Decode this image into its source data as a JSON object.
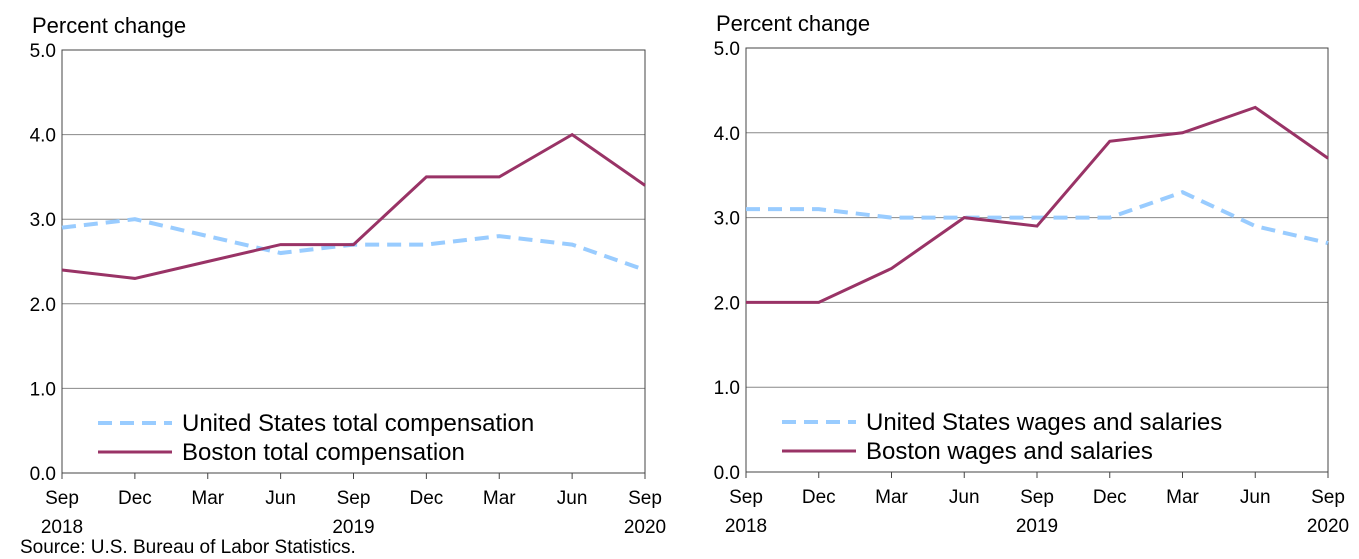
{
  "chart_data": [
    {
      "type": "line",
      "ylabel": "Percent change",
      "categories": [
        "Sep",
        "Dec",
        "Mar",
        "Jun",
        "Sep",
        "Dec",
        "Mar",
        "Jun",
        "Sep"
      ],
      "years": [
        "2018",
        null,
        null,
        null,
        "2019",
        null,
        null,
        null,
        "2020"
      ],
      "series": [
        {
          "name": "United States total compensation",
          "color": "#99ccff",
          "style": "dashed",
          "values": [
            2.9,
            3.0,
            2.8,
            2.6,
            2.7,
            2.7,
            2.8,
            2.7,
            2.4
          ]
        },
        {
          "name": "Boston total compensation",
          "color": "#993366",
          "style": "solid",
          "values": [
            2.4,
            2.3,
            2.5,
            2.7,
            2.7,
            3.5,
            3.5,
            4.0,
            3.4
          ]
        }
      ],
      "ylim": [
        0,
        5
      ],
      "yticks": [
        {
          "value": 0,
          "label": "0.0"
        },
        {
          "value": 1,
          "label": "1.0"
        },
        {
          "value": 2,
          "label": "2.0"
        },
        {
          "value": 3,
          "label": "3.0"
        },
        {
          "value": 4,
          "label": "4.0"
        },
        {
          "value": 5,
          "label": "5.0"
        }
      ],
      "grid": true,
      "legend": "lower left"
    },
    {
      "type": "line",
      "ylabel": "Percent change",
      "categories": [
        "Sep",
        "Dec",
        "Mar",
        "Jun",
        "Sep",
        "Dec",
        "Mar",
        "Jun",
        "Sep"
      ],
      "years": [
        "2018",
        null,
        null,
        null,
        "2019",
        null,
        null,
        null,
        "2020"
      ],
      "series": [
        {
          "name": "United States wages and salaries",
          "color": "#99ccff",
          "style": "dashed",
          "values": [
            3.1,
            3.1,
            3.0,
            3.0,
            3.0,
            3.0,
            3.3,
            2.9,
            2.7
          ]
        },
        {
          "name": "Boston wages and salaries",
          "color": "#993366",
          "style": "solid",
          "values": [
            2.0,
            2.0,
            2.4,
            3.0,
            2.9,
            3.9,
            4.0,
            4.3,
            3.7
          ]
        }
      ],
      "ylim": [
        0,
        5
      ],
      "yticks": [
        {
          "value": 0,
          "label": "0.0"
        },
        {
          "value": 1,
          "label": "1.0"
        },
        {
          "value": 2,
          "label": "2.0"
        },
        {
          "value": 3,
          "label": "3.0"
        },
        {
          "value": 4,
          "label": "4.0"
        },
        {
          "value": 5,
          "label": "5.0"
        }
      ],
      "grid": true,
      "legend": "lower left"
    }
  ],
  "source": "Source: U.S. Bureau of Labor Statistics."
}
